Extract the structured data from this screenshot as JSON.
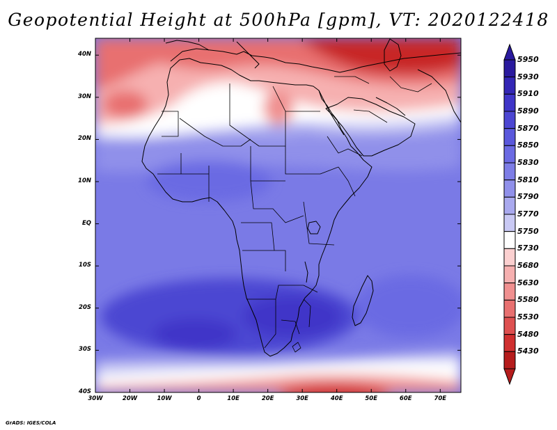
{
  "title": "Geopotential Height at 500hPa [gpm], VT: 2020122418",
  "chart_data": {
    "type": "heatmap",
    "variable": "Geopotential Height at 500hPa",
    "units": "gpm",
    "valid_time": "2020122418",
    "lon_range": [
      -30,
      76
    ],
    "lat_range": [
      -40,
      44
    ],
    "lat_ticks": [
      "40N",
      "30N",
      "20N",
      "10N",
      "EQ",
      "10S",
      "20S",
      "30S",
      "40S"
    ],
    "lat_values": [
      40,
      30,
      20,
      10,
      0,
      -10,
      -20,
      -30,
      -40
    ],
    "lon_ticks": [
      "30W",
      "20W",
      "10W",
      "0",
      "10E",
      "20E",
      "30E",
      "40E",
      "50E",
      "60E",
      "70E"
    ],
    "lon_values": [
      -30,
      -20,
      -10,
      0,
      10,
      20,
      30,
      40,
      50,
      60,
      70
    ],
    "colorbar": {
      "labels": [
        "5950",
        "5930",
        "5910",
        "5890",
        "5870",
        "5850",
        "5830",
        "5810",
        "5790",
        "5770",
        "5750",
        "5730",
        "5680",
        "5630",
        "5580",
        "5530",
        "5480",
        "5430"
      ],
      "colors": [
        "#2a1a9e",
        "#3326b5",
        "#3f35c8",
        "#4c46d2",
        "#5a58dc",
        "#6b6ae3",
        "#7d7de6",
        "#9090ea",
        "#a9a9ee",
        "#c9c9f4",
        "#ffffff",
        "#fbd0d0",
        "#f6b0b0",
        "#f09090",
        "#e87070",
        "#de5050",
        "#d03030",
        "#b51c1c"
      ]
    },
    "sample_values_gpm": [
      {
        "lat": 40,
        "lon": -25,
        "z": 5720
      },
      {
        "lat": 28,
        "lon": -25,
        "z": 5690
      },
      {
        "lat": 28,
        "lon": 5,
        "z": 5765
      },
      {
        "lat": 26,
        "lon": 25,
        "z": 5740
      },
      {
        "lat": 40,
        "lon": 50,
        "z": 5590
      },
      {
        "lat": 20,
        "lon": 0,
        "z": 5810
      },
      {
        "lat": 5,
        "lon": 20,
        "z": 5850
      },
      {
        "lat": -22,
        "lon": 20,
        "z": 5905
      },
      {
        "lat": -28,
        "lon": -10,
        "z": 5880
      },
      {
        "lat": -38,
        "lon": 40,
        "z": 5700
      }
    ]
  },
  "credit": "GrADS: IGES/COLA"
}
